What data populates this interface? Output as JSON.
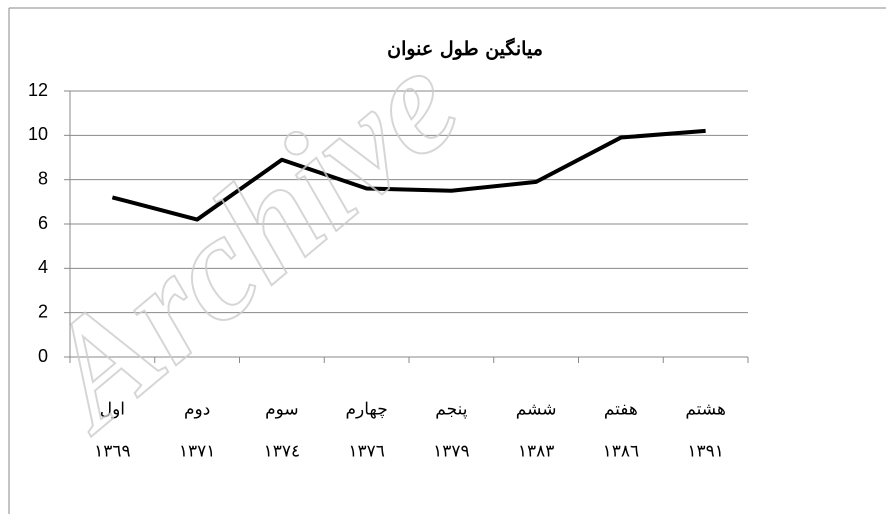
{
  "chart_data": {
    "type": "line",
    "title": "میانگین طول عنوان",
    "watermark": "Archive",
    "categories": [
      "اول",
      "دوم",
      "سوم",
      "چهارم",
      "پنجم",
      "ششم",
      "هفتم",
      "هشتم"
    ],
    "category_years": [
      "١٣٦٩",
      "١٣٧١",
      "١٣٧٤",
      "١٣٧٦",
      "١٣٧٩",
      "١٣٨٣",
      "١٣٨٦",
      "١٣٩١"
    ],
    "series": [
      {
        "color": "#000000",
        "values": [
          7.2,
          6.2,
          8.9,
          7.6,
          7.5,
          7.9,
          9.9,
          10.2
        ]
      }
    ],
    "ylim": [
      0,
      12
    ],
    "yticks": [
      0,
      2,
      4,
      6,
      8,
      10,
      12
    ],
    "grid": true
  }
}
